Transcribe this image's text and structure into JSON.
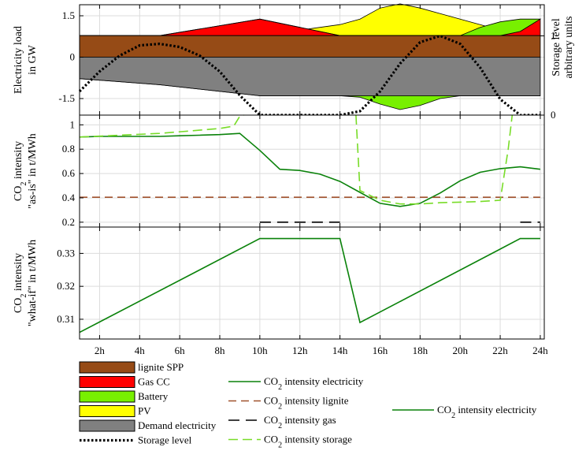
{
  "chart_data": [
    {
      "type": "area",
      "ylabel": [
        "Electricity load",
        "in GW"
      ],
      "ylabel_right": [
        "Storage level",
        "arbitrary units"
      ],
      "ylim": [
        -2.1,
        1.9
      ],
      "yticks": [
        "1.5",
        "0",
        "-1.5"
      ],
      "ytick_values": [
        1.5,
        0,
        -1.5
      ],
      "yticks_right": [
        "1",
        "0"
      ],
      "x": [
        1,
        5,
        10,
        14,
        15,
        16,
        17,
        18,
        19,
        20,
        21,
        22,
        23,
        24
      ],
      "series": [
        {
          "name": "lignite SPP",
          "color": "#964B16",
          "values": [
            0.78,
            0.78,
            0.78,
            0.78,
            0.78,
            0.78,
            0.78,
            0.78,
            0.78,
            0.78,
            0.78,
            0.78,
            0.78,
            0.78
          ]
        },
        {
          "name": "Gas CC",
          "color": "#FF0000",
          "values": [
            0,
            0,
            0.6,
            0,
            0,
            0,
            0,
            0,
            0,
            0,
            0,
            0,
            0.15,
            0.6
          ]
        },
        {
          "name": "Battery",
          "color": "#78F000",
          "values": [
            0,
            0,
            0,
            0,
            -0.05,
            -0.3,
            -0.5,
            -0.35,
            -0.1,
            0,
            0.3,
            0.5,
            0.45,
            0
          ]
        },
        {
          "name": "PV",
          "color": "#FFFF00",
          "values": [
            0,
            0,
            0,
            0.4,
            0.6,
            1.0,
            1.15,
            1.0,
            0.8,
            0.6,
            0.4,
            0.2,
            0,
            0
          ]
        },
        {
          "name": "Demand electricity",
          "color": "#808080",
          "values": [
            -0.78,
            -1.0,
            -1.4,
            -1.4,
            -1.4,
            -1.4,
            -1.4,
            -1.4,
            -1.4,
            -1.4,
            -1.4,
            -1.4,
            -1.4,
            -1.4
          ]
        }
      ],
      "storage_level": {
        "name": "Storage level",
        "x": [
          1,
          2,
          3,
          4,
          5,
          6,
          7,
          8,
          9,
          10,
          11,
          12,
          13,
          14,
          15,
          16,
          17,
          18,
          19,
          20,
          21,
          22,
          23,
          24
        ],
        "values": [
          0.3,
          0.55,
          0.75,
          0.88,
          0.9,
          0.86,
          0.75,
          0.55,
          0.25,
          0,
          0,
          0,
          0,
          0,
          0.05,
          0.3,
          0.65,
          0.92,
          1.0,
          0.9,
          0.6,
          0.2,
          0,
          0
        ]
      }
    },
    {
      "type": "line",
      "ylabel": [
        "CO2 intensity",
        "\"as-is\" in t/MWh"
      ],
      "ylim": [
        0.16,
        1.08
      ],
      "yticks": [
        "1",
        "0.8",
        "0.6",
        "0.4",
        "0.2"
      ],
      "ytick_values": [
        1,
        0.8,
        0.6,
        0.4,
        0.2
      ],
      "series": [
        {
          "name": "CO2 intensity electricity",
          "color": "#0A820A",
          "dash": "",
          "x": [
            1,
            2,
            3,
            4,
            5,
            6,
            7,
            8,
            9,
            10,
            11,
            12,
            13,
            14,
            15,
            16,
            17,
            18,
            19,
            20,
            21,
            22,
            23,
            24
          ],
          "values": [
            0.9,
            0.905,
            0.905,
            0.905,
            0.905,
            0.91,
            0.915,
            0.92,
            0.93,
            0.79,
            0.635,
            0.625,
            0.595,
            0.535,
            0.445,
            0.355,
            0.33,
            0.355,
            0.44,
            0.54,
            0.61,
            0.64,
            0.655,
            0.635
          ]
        },
        {
          "name": "CO2 intensity lignite",
          "color": "#A0522D",
          "dash": "10,6",
          "x": [
            1,
            24
          ],
          "values": [
            0.405,
            0.405
          ]
        },
        {
          "name": "CO2 intensity gas",
          "color": "#000000",
          "dash": "14,8",
          "x": [
            10,
            14
          ],
          "values": [
            0.2,
            0.2
          ]
        },
        {
          "name": "CO2 intensity gas",
          "color": "#000000",
          "dash": "14,8",
          "x": [
            23,
            24
          ],
          "values": [
            0.2,
            0.2
          ]
        },
        {
          "name": "CO2 intensity storage",
          "color": "#78DC28",
          "dash": "12,6",
          "x": [
            1,
            5,
            8,
            8.7,
            9,
            9.2
          ],
          "values": [
            0.9,
            0.93,
            0.97,
            0.99,
            1.07,
            1.09
          ]
        },
        {
          "name": "CO2 intensity storage",
          "color": "#78DC28",
          "dash": "12,6",
          "x": [
            14.8,
            15,
            16,
            17,
            18,
            19,
            20,
            21,
            22,
            22.4,
            22.6
          ],
          "values": [
            1.09,
            0.46,
            0.38,
            0.35,
            0.35,
            0.36,
            0.365,
            0.37,
            0.38,
            0.8,
            1.09
          ]
        }
      ]
    },
    {
      "type": "line",
      "ylabel": [
        "CO2 intensity",
        "\"what-if\" in t/MWh"
      ],
      "ylim": [
        0.304,
        0.338
      ],
      "yticks": [
        "0.33",
        "0.32",
        "0.31"
      ],
      "ytick_values": [
        0.33,
        0.32,
        0.31
      ],
      "xticks": [
        "2h",
        "4h",
        "6h",
        "8h",
        "10h",
        "12h",
        "14h",
        "16h",
        "18h",
        "20h",
        "22h",
        "24h"
      ],
      "xtick_values": [
        2,
        4,
        6,
        8,
        10,
        12,
        14,
        16,
        18,
        20,
        22,
        24
      ],
      "series": [
        {
          "name": "CO2 intensity electricity",
          "color": "#0A820A",
          "dash": "",
          "x": [
            1,
            10,
            14,
            15,
            23,
            24
          ],
          "values": [
            0.306,
            0.3345,
            0.3345,
            0.309,
            0.3345,
            0.3345
          ]
        }
      ]
    }
  ],
  "legend": {
    "col1": [
      {
        "label": "lignite SPP",
        "kind": "patch",
        "color": "#964B16"
      },
      {
        "label": "Gas CC",
        "kind": "patch",
        "color": "#FF0000"
      },
      {
        "label": "Battery",
        "kind": "patch",
        "color": "#78F000"
      },
      {
        "label": "PV",
        "kind": "patch",
        "color": "#FFFF00"
      },
      {
        "label": "Demand electricity",
        "kind": "patch",
        "color": "#808080"
      },
      {
        "label": "Storage level",
        "kind": "dotted",
        "color": "#000000"
      }
    ],
    "col2": [
      {
        "label": "intensity electricity",
        "kind": "line",
        "color": "#0A820A",
        "dash": ""
      },
      {
        "label": "intensity lignite",
        "kind": "line",
        "color": "#A0522D",
        "dash": "10,6"
      },
      {
        "label": "intensity gas",
        "kind": "line",
        "color": "#000000",
        "dash": "14,8"
      },
      {
        "label": "intensity storage",
        "kind": "line",
        "color": "#78DC28",
        "dash": "12,6"
      }
    ],
    "col3": [
      {
        "label": "intensity electricity",
        "kind": "line",
        "color": "#0A820A",
        "dash": ""
      }
    ]
  }
}
